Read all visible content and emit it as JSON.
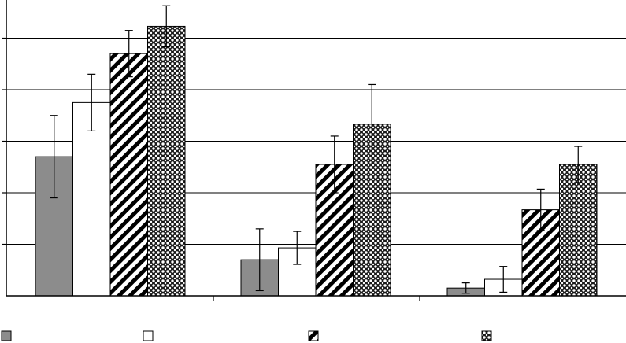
{
  "chart_data": {
    "type": "bar",
    "title": "",
    "xlabel": "",
    "ylabel": "",
    "categories": [
      "",
      "",
      ""
    ],
    "ylim": [
      0,
      5.7
    ],
    "yticks": [
      0,
      1,
      2,
      3,
      4,
      5
    ],
    "tick_labels_shown": false,
    "grid": true,
    "legend_position": "bottom",
    "series": [
      {
        "pattern": "solid-gray",
        "fill": "#8c8c8c",
        "values": [
          2.7,
          0.7,
          0.15
        ],
        "errors": [
          0.8,
          0.6,
          0.1
        ]
      },
      {
        "pattern": "solid-white",
        "fill": "#ffffff",
        "values": [
          3.75,
          0.93,
          0.32
        ],
        "errors": [
          0.55,
          0.32,
          0.25
        ]
      },
      {
        "pattern": "diagonal-hatch",
        "fill": "#ffffff",
        "values": [
          4.7,
          2.55,
          1.67
        ],
        "errors": [
          0.45,
          0.55,
          0.4
        ]
      },
      {
        "pattern": "crosshatch",
        "fill": "#ffffff",
        "values": [
          5.23,
          3.33,
          2.55
        ],
        "errors": [
          0.4,
          0.77,
          0.35
        ]
      }
    ]
  },
  "colors": {
    "axis": "#000000",
    "grid": "#000000",
    "bar_outline": "#000000"
  }
}
